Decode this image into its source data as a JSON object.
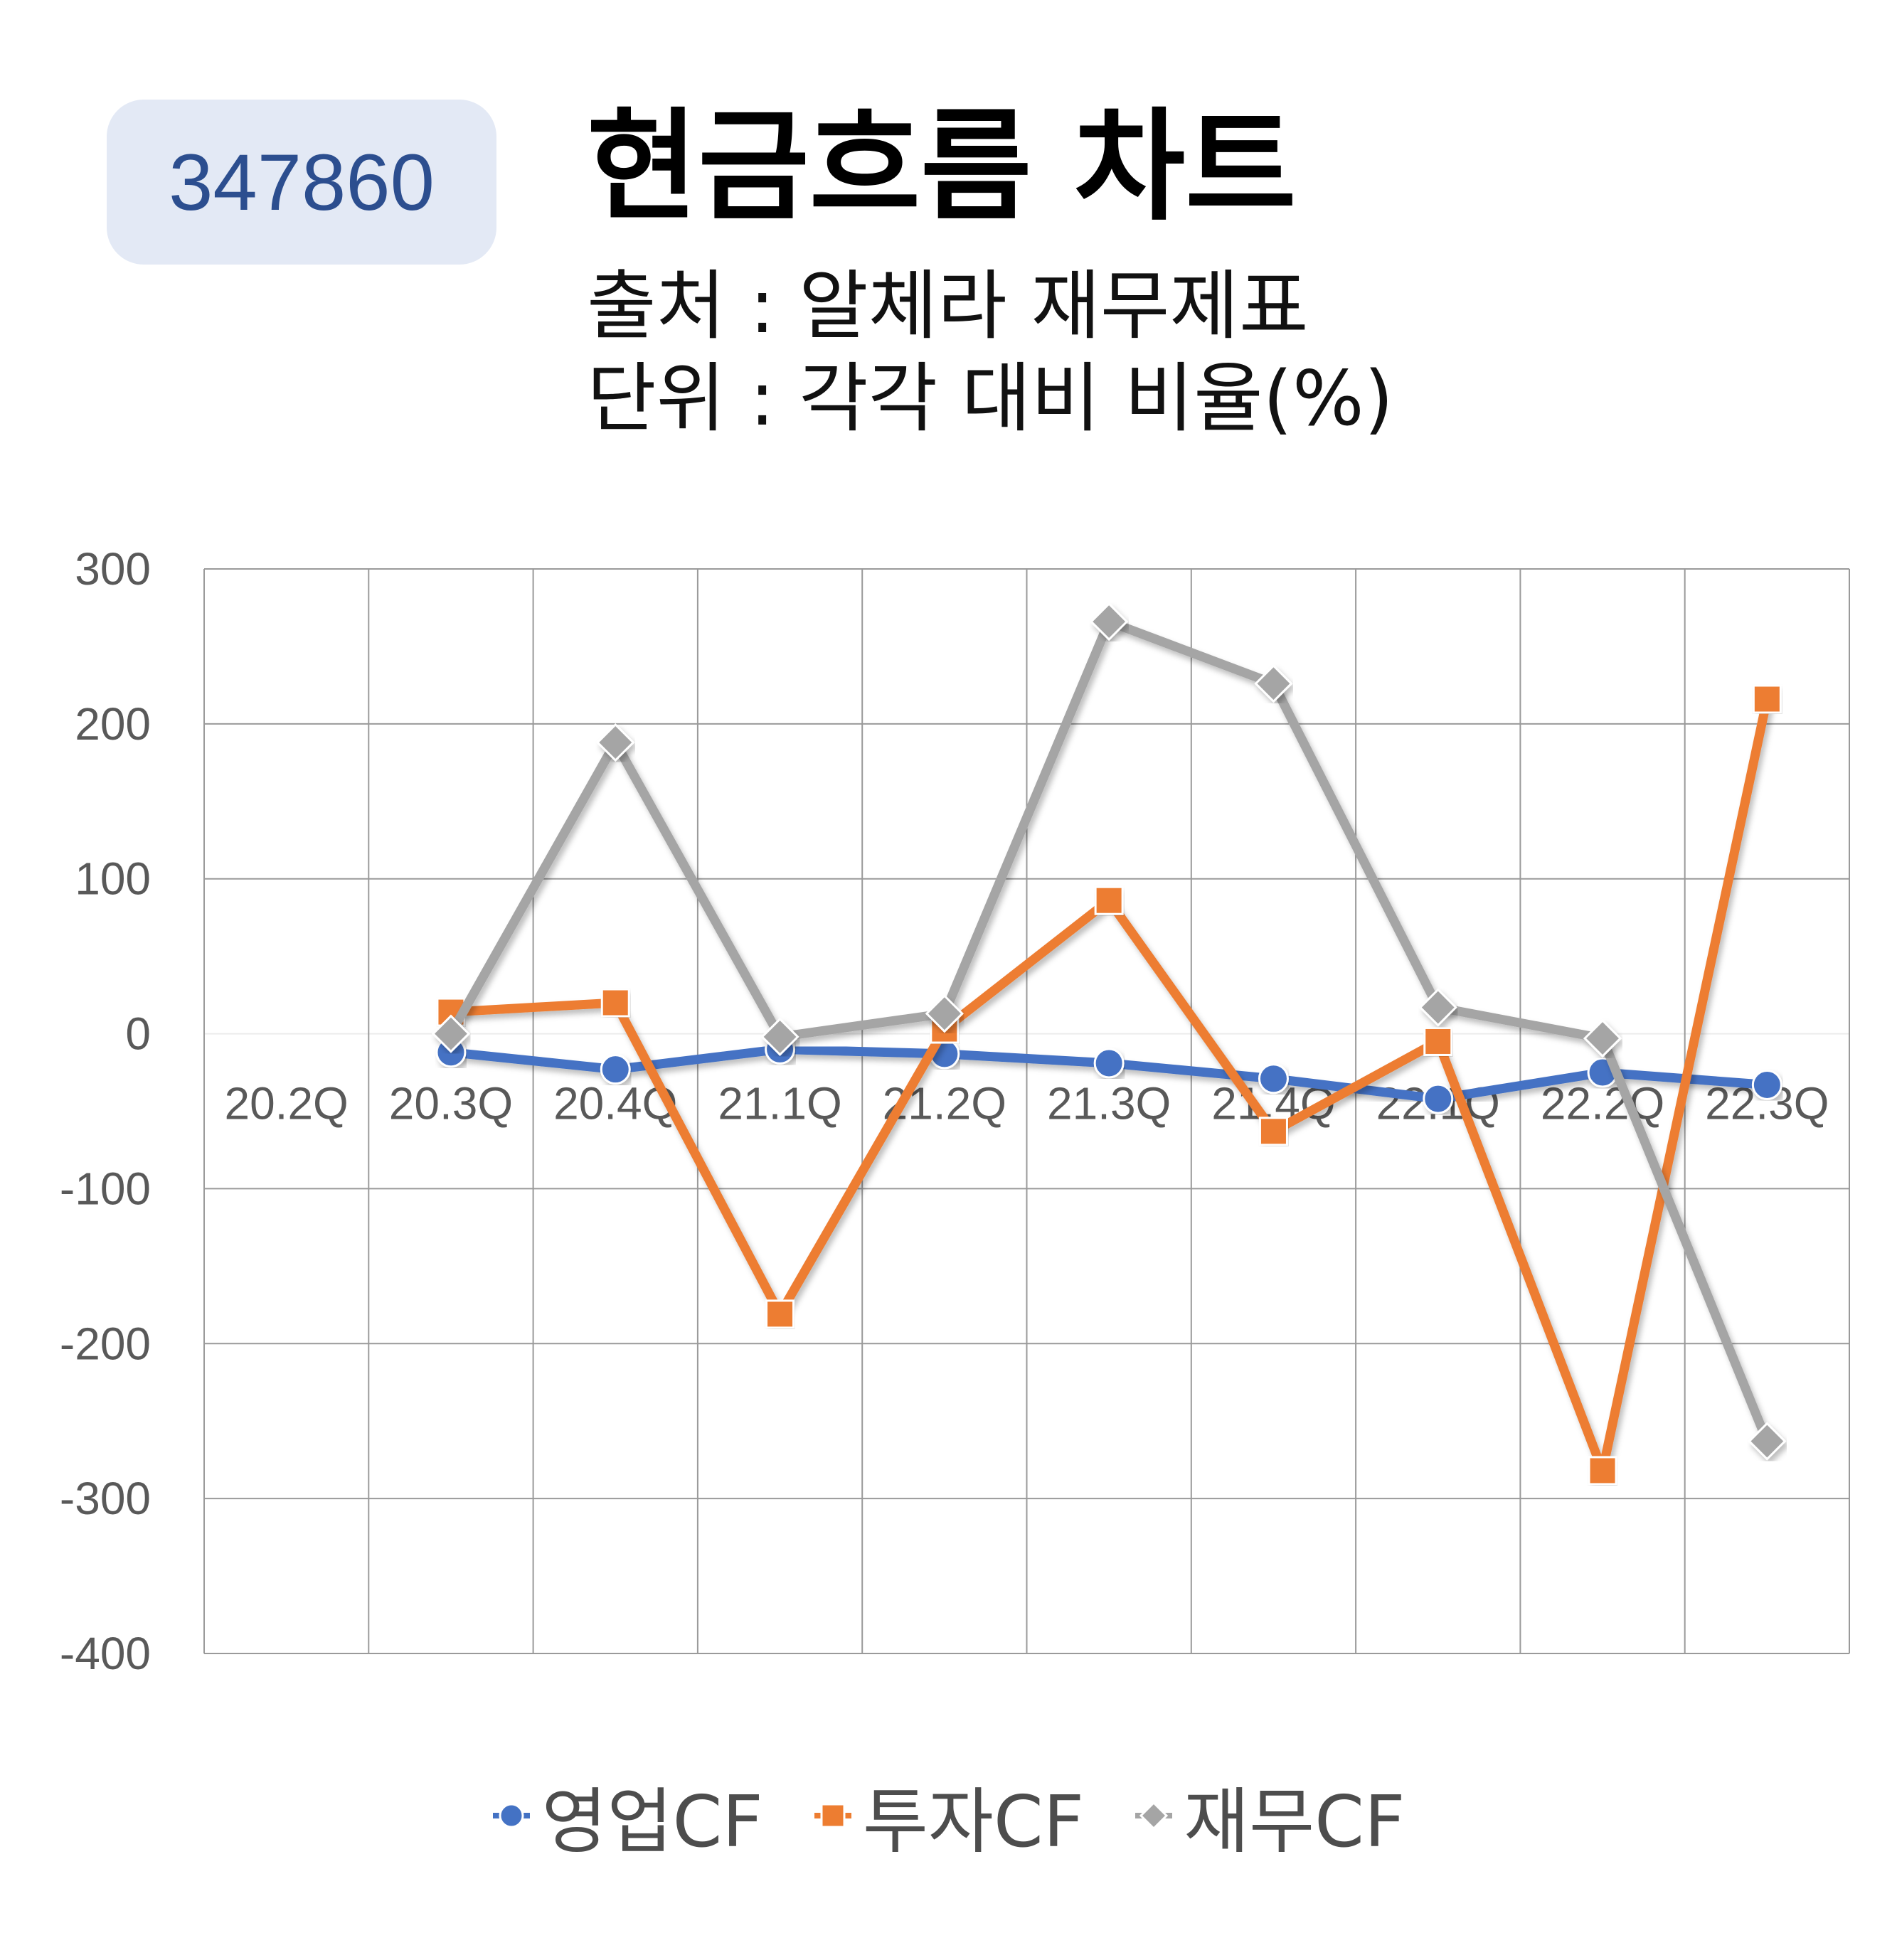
{
  "header": {
    "code": "347860",
    "title": "현금흐름 차트",
    "source": "출처 : 알체라 재무제표",
    "unit": "단위 : 각각 대비 비율(%)"
  },
  "chart_data": {
    "type": "line",
    "categories": [
      "20.2Q",
      "20.3Q",
      "20.4Q",
      "21.1Q",
      "21.2Q",
      "21.3Q",
      "21.4Q",
      "22.1Q",
      "22.2Q",
      "22.3Q"
    ],
    "series": [
      {
        "name": "영업CF",
        "color": "#4472c4",
        "marker": "circle",
        "values": [
          null,
          -12,
          -23,
          -10,
          -13,
          -19,
          -29,
          -42,
          -25,
          -33
        ]
      },
      {
        "name": "투자CF",
        "color": "#ed7d31",
        "marker": "square",
        "values": [
          null,
          14,
          20,
          -181,
          3,
          86,
          -63,
          -5,
          -282,
          216
        ]
      },
      {
        "name": "재무CF",
        "color": "#a5a5a5",
        "marker": "diamond",
        "values": [
          null,
          0,
          188,
          -2,
          13,
          266,
          226,
          17,
          -3,
          -263
        ]
      }
    ],
    "yticks": [
      "300",
      "200",
      "100",
      "0",
      "-100",
      "-200",
      "-300",
      "-400"
    ],
    "ylim": [
      -400,
      300
    ],
    "grid": true,
    "legend_position": "bottom"
  }
}
